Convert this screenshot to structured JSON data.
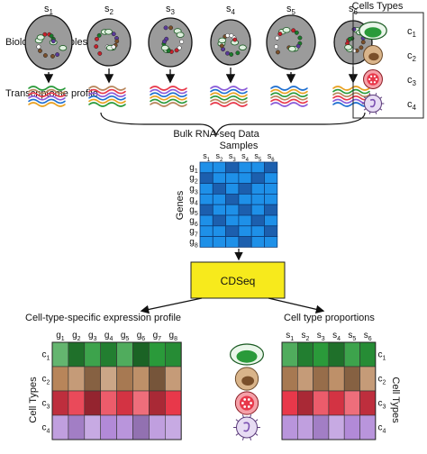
{
  "labels": {
    "biological_samples": "Biological samples",
    "transcriptome_profile": "Transcriptome profile",
    "bulk_rnaseq": "Bulk RNA-seq Data",
    "samples": "Samples",
    "genes": "Genes",
    "cdseq": "CDSeq",
    "expression_profile": "Cell-type-specific expression profile",
    "cell_type_proportions": "Cell type proportions",
    "cells_types": "Cells Types",
    "cell_types_left": "Cell Types",
    "cell_types_right": "Cell Types"
  },
  "samples": [
    {
      "base": "s",
      "sub": "1"
    },
    {
      "base": "s",
      "sub": "2"
    },
    {
      "base": "s",
      "sub": "3"
    },
    {
      "base": "s",
      "sub": "4"
    },
    {
      "base": "s",
      "sub": "5"
    },
    {
      "base": "s",
      "sub": "6"
    }
  ],
  "genes": [
    {
      "base": "g",
      "sub": "1"
    },
    {
      "base": "g",
      "sub": "2"
    },
    {
      "base": "g",
      "sub": "3"
    },
    {
      "base": "g",
      "sub": "4"
    },
    {
      "base": "g",
      "sub": "5"
    },
    {
      "base": "g",
      "sub": "6"
    },
    {
      "base": "g",
      "sub": "7"
    },
    {
      "base": "g",
      "sub": "8"
    }
  ],
  "cell_types": [
    {
      "base": "c",
      "sub": "1",
      "icon": "green-cell-icon"
    },
    {
      "base": "c",
      "sub": "2",
      "icon": "brown-cell-icon"
    },
    {
      "base": "c",
      "sub": "3",
      "icon": "red-cell-icon"
    },
    {
      "base": "c",
      "sub": "4",
      "icon": "purple-cell-icon"
    }
  ],
  "colors": {
    "cell_c1": "#2a9a3a",
    "cell_c2": "#b8855a",
    "cell_c3": "#e8384a",
    "cell_c4": "#b28ad8",
    "grid_blue": "#1e90e8",
    "grid_dark": "#1c5fae",
    "cdseq_box": "#f7ea1c",
    "sample_blob": "#9b9b9b"
  },
  "bulk_matrix_dark_cells": [
    [
      0,
      0,
      1,
      0,
      0,
      1
    ],
    [
      1,
      0,
      0,
      0,
      1,
      0
    ],
    [
      0,
      1,
      0,
      1,
      0,
      0
    ],
    [
      0,
      0,
      1,
      0,
      0,
      0
    ],
    [
      1,
      0,
      0,
      1,
      0,
      1
    ],
    [
      0,
      1,
      0,
      0,
      1,
      0
    ],
    [
      0,
      0,
      1,
      0,
      0,
      1
    ],
    [
      0,
      0,
      0,
      1,
      0,
      0
    ]
  ],
  "expression_matrix_levels": [
    [
      0.2,
      0.8,
      0.4,
      0.7,
      0.3,
      0.9,
      0.5,
      0.6
    ],
    [
      0.5,
      0.3,
      0.8,
      0.2,
      0.6,
      0.4,
      0.9,
      0.3
    ],
    [
      0.7,
      0.4,
      0.9,
      0.3,
      0.6,
      0.2,
      0.8,
      0.5
    ],
    [
      0.3,
      0.6,
      0.2,
      0.5,
      0.4,
      0.7,
      0.3,
      0.2
    ]
  ],
  "proportion_matrix_levels": [
    [
      0.3,
      0.7,
      0.5,
      0.8,
      0.4,
      0.6
    ],
    [
      0.6,
      0.3,
      0.7,
      0.4,
      0.8,
      0.3
    ],
    [
      0.5,
      0.8,
      0.3,
      0.6,
      0.2,
      0.7
    ],
    [
      0.4,
      0.3,
      0.6,
      0.2,
      0.5,
      0.4
    ]
  ]
}
